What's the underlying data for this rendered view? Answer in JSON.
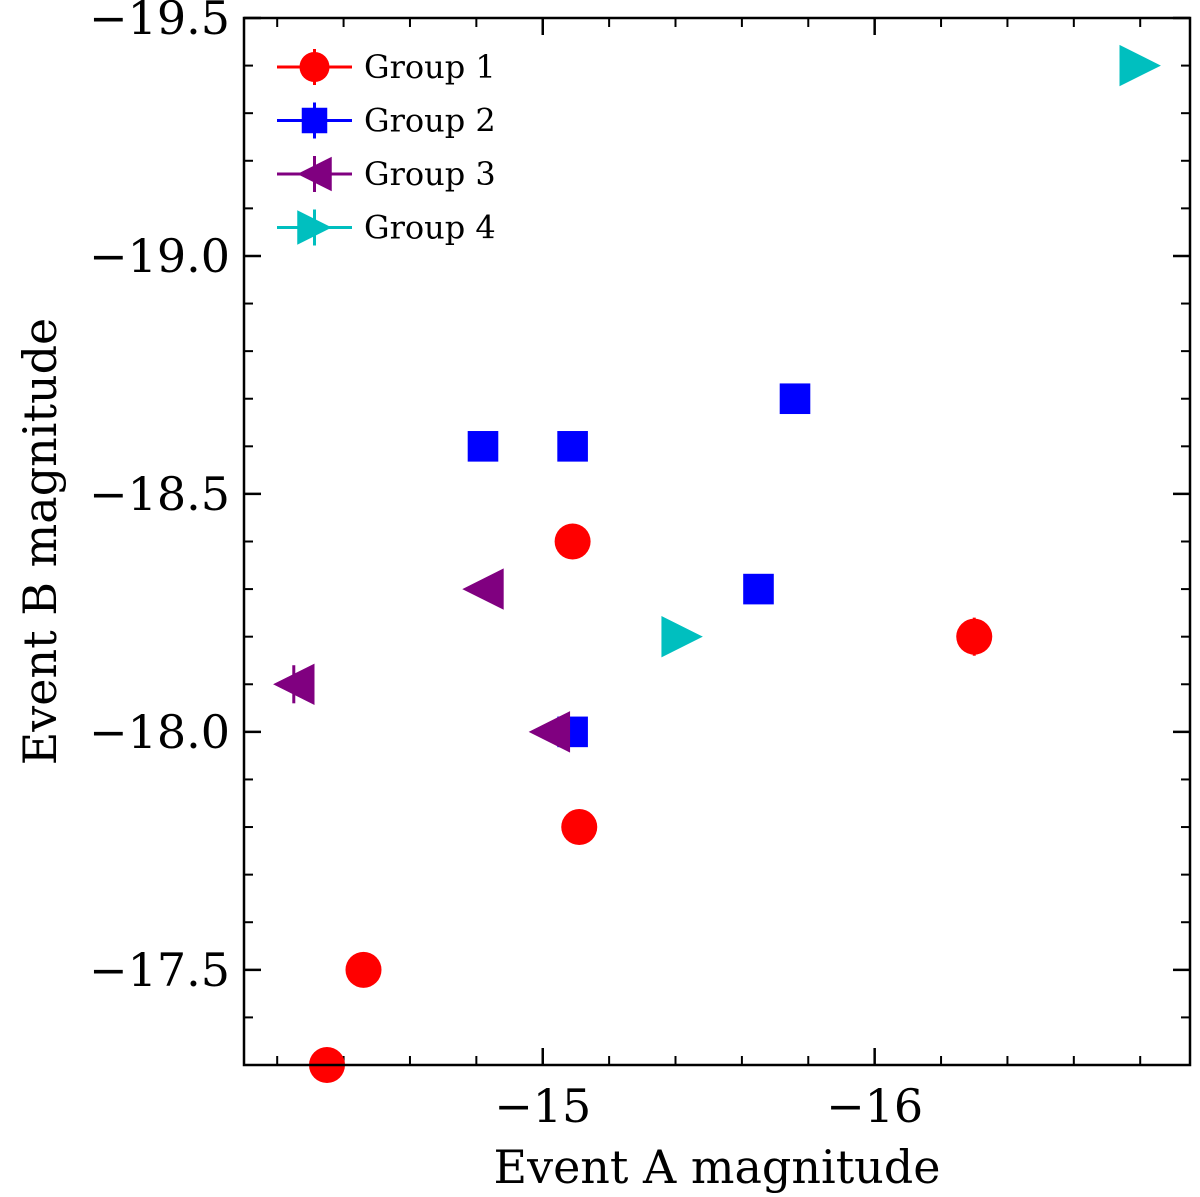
{
  "chart_data": {
    "type": "scatter",
    "title": "",
    "xlabel": "Event A magnitude",
    "ylabel": "Event B magnitude",
    "xlim": [
      -14.1,
      -16.95
    ],
    "ylim": [
      -17.3,
      -19.5
    ],
    "x_major_ticks": [
      -15,
      -16
    ],
    "x_tick_labels": [
      "−15",
      "−16"
    ],
    "x_minor_step": 0.2,
    "y_major_ticks": [
      -17.5,
      -18.0,
      -18.5,
      -19.0,
      -19.5
    ],
    "y_tick_labels": [
      "−17.5",
      "−18.0",
      "−18.5",
      "−19.0",
      "−19.5"
    ],
    "y_minor_step": 0.1,
    "legend_position": "top-left",
    "series": [
      {
        "name": "Group 1",
        "marker": "circle",
        "color": "#ff0000",
        "x": [
          -14.35,
          -14.46,
          -15.11,
          -15.09,
          -16.3
        ],
        "y": [
          -17.3,
          -17.5,
          -17.8,
          -18.4,
          -18.2
        ],
        "yerr": [
          0,
          0,
          0,
          0,
          0.04
        ]
      },
      {
        "name": "Group 2",
        "marker": "square",
        "color": "#0000ff",
        "x": [
          -14.82,
          -15.09,
          -15.09,
          -15.65,
          -15.76
        ],
        "y": [
          -18.6,
          -18.6,
          -18.0,
          -18.3,
          -18.7
        ],
        "yerr": [
          0,
          0,
          0,
          0,
          0
        ]
      },
      {
        "name": "Group 3",
        "marker": "triangle-left",
        "color": "#800080",
        "x": [
          -14.25,
          -14.82,
          -15.02
        ],
        "y": [
          -18.1,
          -18.3,
          -18.0
        ],
        "yerr": [
          0.04,
          0,
          0
        ]
      },
      {
        "name": "Group 4",
        "marker": "triangle-right",
        "color": "#00bfbf",
        "x": [
          -15.42,
          -16.8
        ],
        "y": [
          -18.2,
          -19.4
        ],
        "yerr": [
          0,
          0
        ]
      }
    ]
  }
}
